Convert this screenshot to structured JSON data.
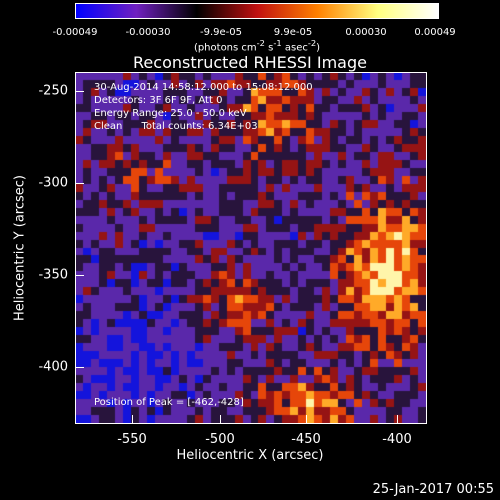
{
  "colorbar": {
    "ticks": [
      "-0.00049",
      "-0.00030",
      "-9.9e-05",
      "9.9e-05",
      "0.00030",
      "0.00049"
    ],
    "unit_html": "(photons cm<sup>-2</sup> s<sup>-1</sup> asec<sup>-2</sup>)",
    "colors": [
      "#0000ff",
      "#7020c0",
      "#000000",
      "#c01010",
      "#ff8000",
      "#ffff80",
      "#ffffff"
    ]
  },
  "title": "Reconstructed RHESSI Image",
  "info": {
    "time": "30-Aug-2014 14:58:12.000 to 15:08:12.000",
    "detectors": "Detectors: 3F 6F 9F, Att 0",
    "energy": "Energy Range: 25.0 - 50.0 keV",
    "clean": "Clean      Total counts: 6.34E+03",
    "peak": "Position of Peak = [-462,-428]"
  },
  "axes": {
    "xlabel": "Heliocentric X (arcsec)",
    "ylabel": "Heliocentric Y (arcsec)",
    "xticks": [
      "-550",
      "-500",
      "-450",
      "-400"
    ],
    "yticks": [
      "-250",
      "-300",
      "-350",
      "-400"
    ]
  },
  "footer": "25-Jan-2017 00:55"
}
